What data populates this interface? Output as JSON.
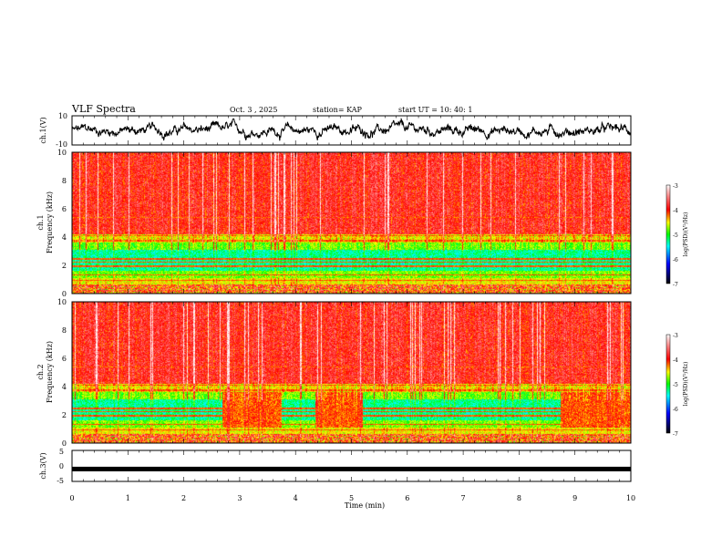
{
  "header": {
    "title": "VLF Spectra",
    "date": "Oct. 3 , 2025",
    "station": "station= KAP",
    "start": "start UT = 10: 40: 1"
  },
  "chart_data": [
    {
      "type": "line",
      "name": "ch1-waveform",
      "ylabel": "ch.1(V)",
      "ylim": [
        -10,
        10
      ],
      "yticks": [
        "10",
        "-10"
      ],
      "xlim": [
        0,
        10
      ],
      "series": [
        {
          "name": "ch.1",
          "description": "noisy waveform, roughly -8 V to +8 V"
        }
      ]
    },
    {
      "type": "heatmap",
      "name": "ch1-spectrogram",
      "ylabel": "ch.1",
      "ylabel2": "Frequency (kHz)",
      "ylim": [
        0,
        10
      ],
      "yticks": [
        "0",
        "2",
        "4",
        "6",
        "8",
        "10"
      ],
      "xlim": [
        0,
        10
      ],
      "colorbar": {
        "label": "log(PSD)(V²/Hz)",
        "range": [
          -7,
          -3
        ],
        "ticks": [
          "-3",
          "-4",
          "-5",
          "-6",
          "-7"
        ]
      }
    },
    {
      "type": "heatmap",
      "name": "ch2-spectrogram",
      "ylabel": "ch.2",
      "ylabel2": "Frequency (kHz)",
      "ylim": [
        0,
        10
      ],
      "yticks": [
        "0",
        "2",
        "4",
        "6",
        "8",
        "10"
      ],
      "xlim": [
        0,
        10
      ],
      "colorbar": {
        "label": "log(PSD)(V²/Hz)",
        "range": [
          -7,
          -3
        ],
        "ticks": [
          "-3",
          "-4",
          "-5",
          "-6",
          "-7"
        ]
      }
    },
    {
      "type": "line",
      "name": "ch3-waveform",
      "ylabel": "ch.3(V)",
      "ylim": [
        -5,
        5
      ],
      "yticks": [
        "5",
        "0",
        "-5"
      ],
      "xlim": [
        0,
        10
      ],
      "series": [
        {
          "name": "ch.3",
          "description": "thick flat trace near -1 V"
        }
      ]
    }
  ],
  "xaxis": {
    "label": "Time (min)",
    "ticks": [
      "0",
      "1",
      "2",
      "3",
      "4",
      "5",
      "6",
      "7",
      "8",
      "9",
      "10"
    ]
  }
}
